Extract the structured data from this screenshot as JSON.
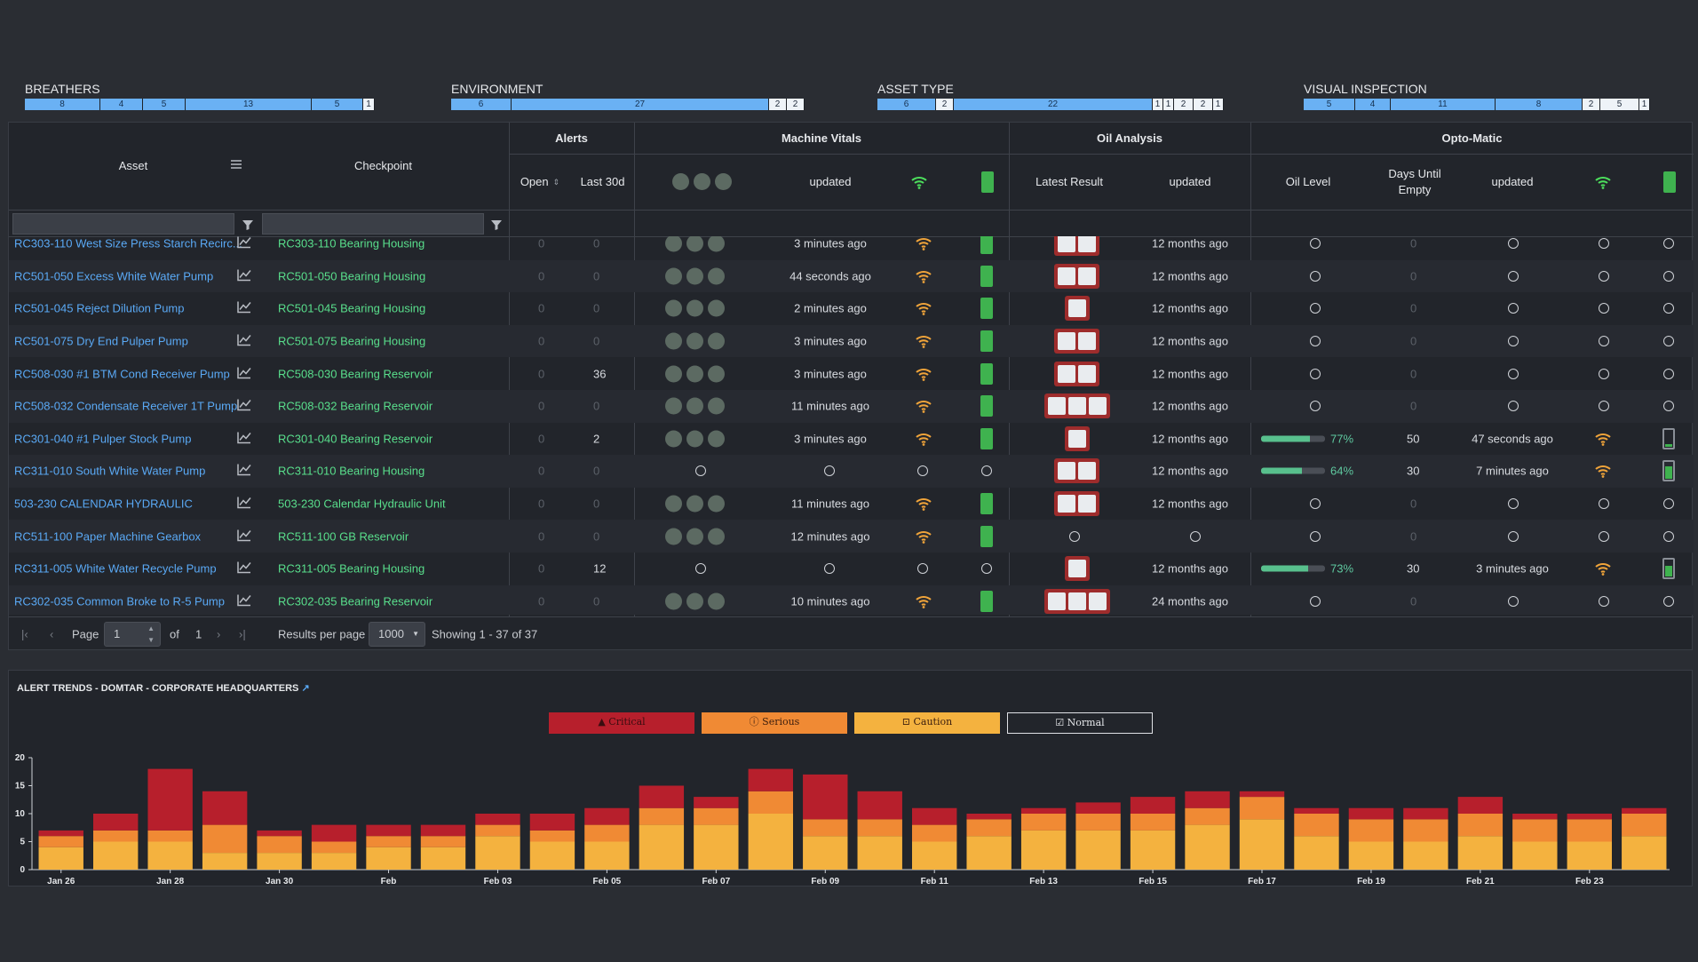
{
  "summary": [
    {
      "title": "BREATHERS",
      "segments": [
        {
          "v": "8",
          "w": 85
        },
        {
          "v": "4",
          "w": 48
        },
        {
          "v": "5",
          "w": 48
        },
        {
          "v": "13",
          "w": 142
        },
        {
          "v": "5",
          "w": 58
        },
        {
          "v": "1",
          "w": 13,
          "white": true
        }
      ]
    },
    {
      "title": "ENVIRONMENT",
      "segments": [
        {
          "v": "6",
          "w": 68
        },
        {
          "v": "27",
          "w": 290
        },
        {
          "v": "2",
          "w": 20,
          "white": true
        },
        {
          "v": "2",
          "w": 20,
          "white": true
        }
      ]
    },
    {
      "title": "ASSET TYPE",
      "segments": [
        {
          "v": "6",
          "w": 66
        },
        {
          "v": "2",
          "w": 20,
          "white": true
        },
        {
          "v": "22",
          "w": 224
        },
        {
          "v": "1",
          "w": 12,
          "white": true
        },
        {
          "v": "1",
          "w": 12,
          "white": true
        },
        {
          "v": "2",
          "w": 22,
          "white": true
        },
        {
          "v": "2",
          "w": 22,
          "white": true
        },
        {
          "v": "1",
          "w": 12,
          "white": true
        }
      ]
    },
    {
      "title": "VISUAL INSPECTION",
      "segments": [
        {
          "v": "5",
          "w": 58
        },
        {
          "v": "4",
          "w": 40
        },
        {
          "v": "11",
          "w": 118
        },
        {
          "v": "8",
          "w": 98
        },
        {
          "v": "2",
          "w": 20,
          "white": true
        },
        {
          "v": "5",
          "w": 44,
          "white": true
        },
        {
          "v": "1",
          "w": 12,
          "white": true
        }
      ]
    }
  ],
  "header": {
    "asset": "Asset",
    "checkpoint": "Checkpoint",
    "alerts": "Alerts",
    "open": "Open",
    "last30": "Last 30d",
    "machine_vitals": "Machine Vitals",
    "updated": "updated",
    "oil_analysis": "Oil Analysis",
    "latest_result": "Latest Result",
    "opto_matic": "Opto-Matic",
    "oil_level": "Oil Level",
    "days_until_empty": "Days Until Empty"
  },
  "rows": [
    {
      "asset": "RC303-110 West Size Press Starch Recirc...",
      "cp": "RC303-110 Bearing Housing",
      "open": "0",
      "last": "0",
      "vitals": true,
      "upd": "3 minutes ago",
      "bat": "full",
      "oil": 2,
      "oilupd": "12 months ago",
      "level": null,
      "days": "0",
      "optoupd": null
    },
    {
      "asset": "RC501-050 Excess White Water Pump",
      "cp": "RC501-050 Bearing Housing",
      "open": "0",
      "last": "0",
      "vitals": true,
      "upd": "44 seconds ago",
      "bat": "full",
      "oil": 2,
      "oilupd": "12 months ago",
      "level": null,
      "days": "0",
      "optoupd": null
    },
    {
      "asset": "RC501-045 Reject Dilution Pump",
      "cp": "RC501-045 Bearing Housing",
      "open": "0",
      "last": "0",
      "vitals": true,
      "upd": "2 minutes ago",
      "bat": "full",
      "oil": 1,
      "oilupd": "12 months ago",
      "level": null,
      "days": "0",
      "optoupd": null
    },
    {
      "asset": "RC501-075 Dry End Pulper Pump",
      "cp": "RC501-075 Bearing Housing",
      "open": "0",
      "last": "0",
      "vitals": true,
      "upd": "3 minutes ago",
      "bat": "full",
      "oil": 2,
      "oilupd": "12 months ago",
      "level": null,
      "days": "0",
      "optoupd": null
    },
    {
      "asset": "RC508-030 #1 BTM Cond Receiver Pump",
      "cp": "RC508-030 Bearing Reservoir",
      "open": "0",
      "last": "36",
      "vitals": true,
      "upd": "3 minutes ago",
      "bat": "full",
      "oil": 2,
      "oilupd": "12 months ago",
      "level": null,
      "days": "0",
      "optoupd": null
    },
    {
      "asset": "RC508-032 Condensate Receiver 1T Pump",
      "cp": "RC508-032 Bearing Reservoir",
      "open": "0",
      "last": "0",
      "vitals": true,
      "upd": "11 minutes ago",
      "bat": "full",
      "oil": 3,
      "oilupd": "12 months ago",
      "level": null,
      "days": "0",
      "optoupd": null
    },
    {
      "asset": "RC301-040 #1 Pulper Stock Pump",
      "cp": "RC301-040 Bearing Reservoir",
      "open": "0",
      "last": "2",
      "vitals": true,
      "upd": "3 minutes ago",
      "bat": "full",
      "oil": 1,
      "oilupd": "12 months ago",
      "level": 77,
      "levelText": "77%",
      "days": "50",
      "optoupd": "47 seconds ago",
      "optobat": 0.15
    },
    {
      "asset": "RC311-010 South White Water Pump",
      "cp": "RC311-010 Bearing Housing",
      "open": "0",
      "last": "0",
      "vitals": false,
      "upd": null,
      "bat": null,
      "oil": 2,
      "oilupd": "12 months ago",
      "level": 64,
      "levelText": "64%",
      "days": "30",
      "optoupd": "7 minutes ago",
      "optobat": 0.7
    },
    {
      "asset": "503-230 CALENDAR HYDRAULIC",
      "cp": "503-230 Calendar Hydraulic Unit",
      "open": "0",
      "last": "0",
      "vitals": true,
      "upd": "11 minutes ago",
      "bat": "full",
      "oil": 2,
      "oilupd": "12 months ago",
      "level": null,
      "days": "0",
      "optoupd": null
    },
    {
      "asset": "RC511-100 Paper Machine Gearbox",
      "cp": "RC511-100 GB Reservoir",
      "open": "0",
      "last": "0",
      "vitals": true,
      "upd": "12 minutes ago",
      "bat": "full",
      "oil": 0,
      "oilupd": null,
      "level": null,
      "days": "0",
      "optoupd": null
    },
    {
      "asset": "RC311-005 White Water Recycle Pump",
      "cp": "RC311-005 Bearing Housing",
      "open": "0",
      "last": "12",
      "vitals": false,
      "upd": null,
      "bat": null,
      "oil": 1,
      "oilupd": "12 months ago",
      "level": 73,
      "levelText": "73%",
      "days": "30",
      "optoupd": "3 minutes ago",
      "optobat": 0.6
    },
    {
      "asset": "RC302-035 Common Broke to R-5 Pump",
      "cp": "RC302-035 Bearing Reservoir",
      "open": "0",
      "last": "0",
      "vitals": true,
      "upd": "10 minutes ago",
      "bat": "full",
      "oil": 3,
      "oilupd": "24 months ago",
      "level": null,
      "days": "0",
      "optoupd": null
    }
  ],
  "pager": {
    "page_label": "Page",
    "page": "1",
    "of": "of",
    "total": "1",
    "rpp_label": "Results per page",
    "rpp": "1000",
    "showing": "Showing 1 - 37 of 37"
  },
  "chart_title": "ALERT TRENDS - DOMTAR - CORPORATE HEADQUARTERS",
  "legend": {
    "critical": "Critical",
    "serious": "Serious",
    "caution": "Caution",
    "normal": "Normal"
  },
  "colors": {
    "critical": "#b71f2c",
    "serious": "#f08a34",
    "caution": "#f4b23f",
    "accent": "#5aa9f5",
    "green": "#59df8c"
  },
  "chart_data": {
    "type": "bar",
    "stacked": true,
    "title": "ALERT TRENDS - DOMTAR - CORPORATE HEADQUARTERS",
    "ylim": [
      0,
      20
    ],
    "yticks": [
      "0",
      "5",
      "10",
      "15",
      "20"
    ],
    "xticks": [
      "Jan 26",
      "Jan 28",
      "Jan 30",
      "Feb",
      "Feb 03",
      "Feb 05",
      "Feb 07",
      "Feb 09",
      "Feb 11",
      "Feb 13",
      "Feb 15",
      "Feb 17",
      "Feb 19",
      "Feb 21",
      "Feb 23"
    ],
    "categories": [
      "Jan 26",
      "Jan 27",
      "Jan 28",
      "Jan 29",
      "Jan 30",
      "Jan 31",
      "Feb 01",
      "Feb 02",
      "Feb 03",
      "Feb 04",
      "Feb 05",
      "Feb 06",
      "Feb 07",
      "Feb 08",
      "Feb 09",
      "Feb 10",
      "Feb 11",
      "Feb 12",
      "Feb 13",
      "Feb 14",
      "Feb 15",
      "Feb 16",
      "Feb 17",
      "Feb 18",
      "Feb 19",
      "Feb 20",
      "Feb 21",
      "Feb 22",
      "Feb 23",
      "Feb 24"
    ],
    "series": [
      {
        "name": "Caution",
        "values": [
          4,
          5,
          5,
          3,
          3,
          3,
          4,
          4,
          6,
          5,
          5,
          8,
          8,
          10,
          6,
          6,
          5,
          6,
          7,
          7,
          7,
          8,
          9,
          6,
          5,
          5,
          6,
          5,
          5,
          6
        ]
      },
      {
        "name": "Serious",
        "values": [
          2,
          2,
          2,
          5,
          3,
          2,
          2,
          2,
          2,
          2,
          3,
          3,
          3,
          4,
          3,
          3,
          3,
          3,
          3,
          3,
          3,
          3,
          4,
          4,
          4,
          4,
          4,
          4,
          4,
          4
        ]
      },
      {
        "name": "Critical",
        "values": [
          1,
          3,
          11,
          6,
          1,
          3,
          2,
          2,
          2,
          3,
          3,
          4,
          2,
          4,
          8,
          5,
          3,
          1,
          1,
          2,
          3,
          3,
          1,
          1,
          2,
          2,
          3,
          1,
          1,
          1
        ]
      }
    ]
  }
}
